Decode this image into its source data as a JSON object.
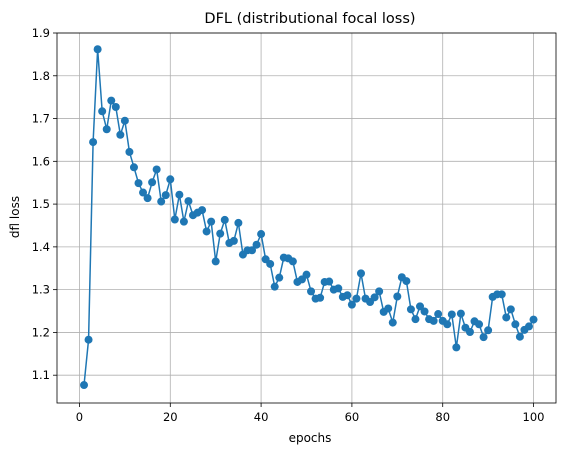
{
  "chart_data": {
    "type": "line",
    "title": "DFL (distributional focal loss)",
    "xlabel": "epochs",
    "ylabel": "dfl loss",
    "xlim": [
      -4.95,
      104.95
    ],
    "ylim": [
      1.035,
      1.9
    ],
    "xticks": [
      0,
      20,
      40,
      60,
      80,
      100
    ],
    "yticks": [
      1.1,
      1.2,
      1.3,
      1.4,
      1.5,
      1.6,
      1.7,
      1.8,
      1.9
    ],
    "xtick_labels": [
      "0",
      "20",
      "40",
      "60",
      "80",
      "100"
    ],
    "ytick_labels": [
      "1.1",
      "1.2",
      "1.3",
      "1.4",
      "1.5",
      "1.6",
      "1.7",
      "1.8",
      "1.9"
    ],
    "grid": true,
    "marker": "circle",
    "series": [
      {
        "color": "#1f77b4",
        "x": [
          1,
          2,
          3,
          4,
          5,
          6,
          7,
          8,
          9,
          10,
          11,
          12,
          13,
          14,
          15,
          16,
          17,
          18,
          19,
          20,
          21,
          22,
          23,
          24,
          25,
          26,
          27,
          28,
          29,
          30,
          31,
          32,
          33,
          34,
          35,
          36,
          37,
          38,
          39,
          40,
          41,
          42,
          43,
          44,
          45,
          46,
          47,
          48,
          49,
          50,
          51,
          52,
          53,
          54,
          55,
          56,
          57,
          58,
          59,
          60,
          61,
          62,
          63,
          64,
          65,
          66,
          67,
          68,
          69,
          70,
          71,
          72,
          73,
          74,
          75,
          76,
          77,
          78,
          79,
          80,
          81,
          82,
          83,
          84,
          85,
          86,
          87,
          88,
          89,
          90,
          91,
          92,
          93,
          94,
          95,
          96,
          97,
          98,
          99,
          100
        ],
        "y": [
          1.077,
          1.183,
          1.645,
          1.862,
          1.717,
          1.675,
          1.742,
          1.727,
          1.662,
          1.695,
          1.622,
          1.586,
          1.549,
          1.527,
          1.514,
          1.551,
          1.581,
          1.506,
          1.521,
          1.558,
          1.464,
          1.522,
          1.459,
          1.507,
          1.474,
          1.48,
          1.486,
          1.436,
          1.459,
          1.366,
          1.431,
          1.463,
          1.409,
          1.414,
          1.456,
          1.382,
          1.392,
          1.392,
          1.405,
          1.43,
          1.371,
          1.36,
          1.307,
          1.328,
          1.375,
          1.373,
          1.366,
          1.318,
          1.324,
          1.335,
          1.296,
          1.279,
          1.281,
          1.318,
          1.319,
          1.3,
          1.303,
          1.283,
          1.287,
          1.265,
          1.279,
          1.338,
          1.279,
          1.271,
          1.282,
          1.296,
          1.248,
          1.256,
          1.223,
          1.284,
          1.329,
          1.32,
          1.254,
          1.231,
          1.261,
          1.249,
          1.231,
          1.227,
          1.243,
          1.227,
          1.219,
          1.242,
          1.165,
          1.244,
          1.211,
          1.201,
          1.226,
          1.219,
          1.189,
          1.205,
          1.283,
          1.289,
          1.289,
          1.235,
          1.254,
          1.219,
          1.19,
          1.206,
          1.214,
          1.23
        ]
      }
    ]
  }
}
